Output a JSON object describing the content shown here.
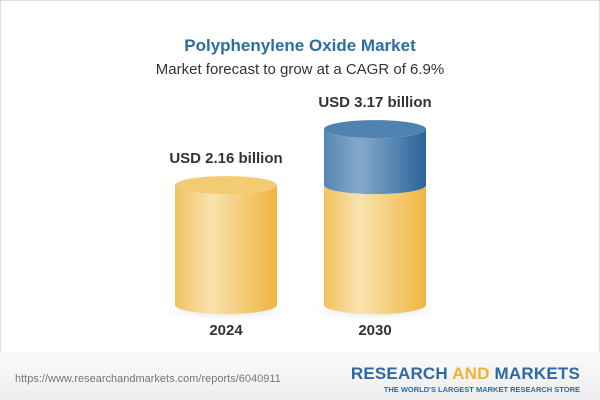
{
  "chart_data": {
    "type": "bar",
    "style": "3d-cylinder",
    "title": "Polyphenylene Oxide Market",
    "subtitle": "Market forecast to grow at a CAGR of 6.9%",
    "categories": [
      "2024",
      "2030"
    ],
    "values": [
      2.16,
      3.17
    ],
    "data_labels": [
      "USD 2.16 billion",
      "USD 3.17 billion"
    ],
    "unit": "USD billion",
    "colors": {
      "base": "#f2c05a",
      "growth": "#3f78aa"
    },
    "grid": false
  },
  "footer": {
    "url": "https://www.researchandmarkets.com/reports/6040911",
    "brand_part1": "RESEARCH ",
    "brand_part2": "AND",
    "brand_part3": " MARKETS",
    "tagline": "THE WORLD'S LARGEST MARKET RESEARCH STORE"
  }
}
